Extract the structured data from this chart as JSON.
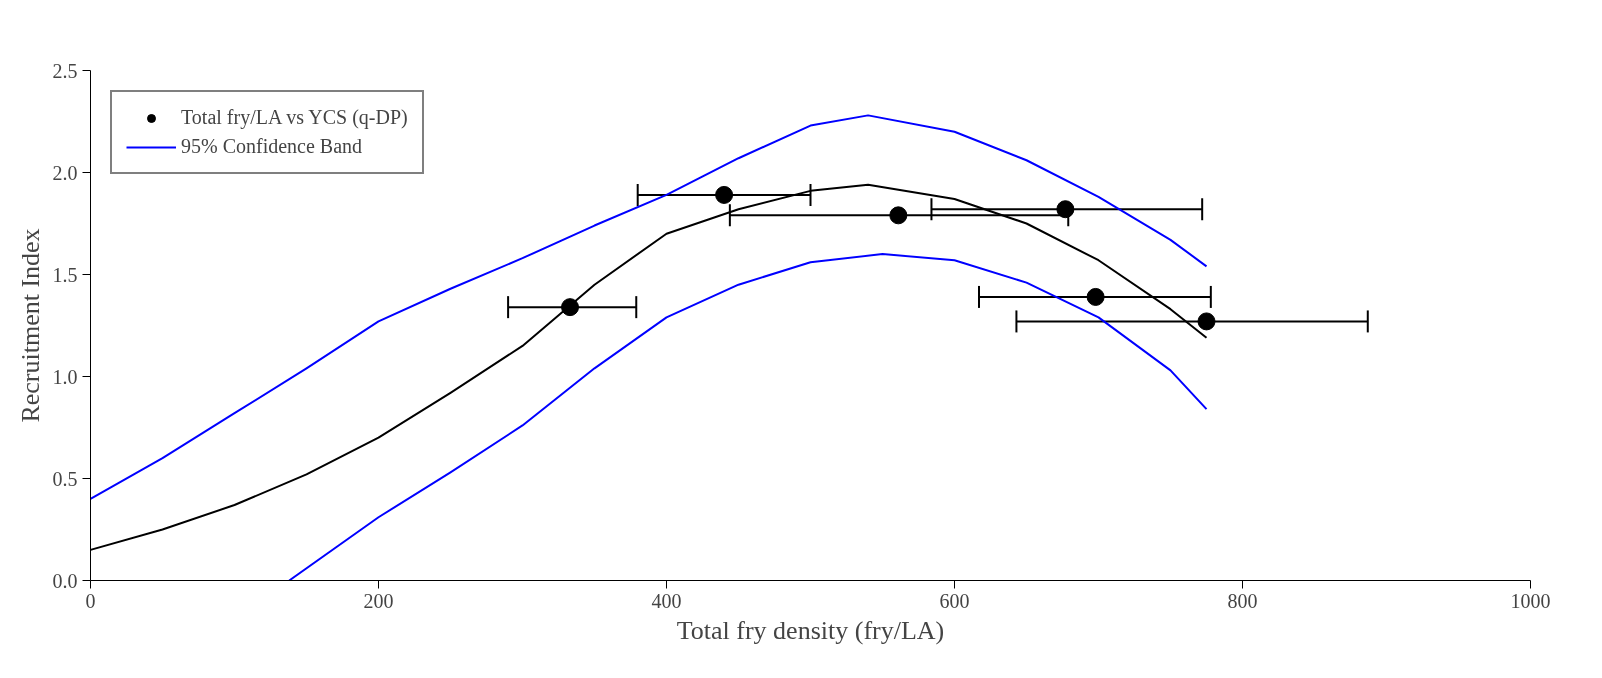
{
  "chart_data": {
    "type": "scatter",
    "xlabel": "Total fry density (fry/LA)",
    "ylabel": "Recruitment Index",
    "xlim": [
      0,
      1000
    ],
    "ylim": [
      0,
      2.5
    ],
    "xticks": [
      0,
      200,
      400,
      600,
      800,
      1000
    ],
    "yticks": [
      {
        "value": 0,
        "label": "0.0"
      },
      {
        "value": 0.5,
        "label": "0.5"
      },
      {
        "value": 1,
        "label": "1.0"
      },
      {
        "value": 1.5,
        "label": "1.5"
      },
      {
        "value": 2,
        "label": "2.0"
      },
      {
        "value": 2.5,
        "label": "2.5"
      }
    ],
    "grid": false,
    "legend": "top left",
    "series": [
      {
        "name": "Total fry/LA vs YCS (q-DP)",
        "marker": "circle",
        "color": "#000000",
        "x": [
          333,
          440,
          561,
          677,
          698,
          775
        ],
        "values": [
          1.34,
          1.89,
          1.79,
          1.82,
          1.39,
          1.27
        ],
        "xerrors": [
          [
            290,
            379
          ],
          [
            380,
            500
          ],
          [
            444,
            679
          ],
          [
            584,
            772
          ],
          [
            617,
            778
          ],
          [
            643,
            887
          ]
        ]
      },
      {
        "type": "line",
        "color": "#000000",
        "x": [
          0,
          50,
          100,
          150,
          200,
          250,
          300,
          350,
          400,
          450,
          500,
          540,
          600,
          650,
          700,
          750,
          775
        ],
        "values": [
          0.15,
          0.25,
          0.37,
          0.52,
          0.7,
          0.92,
          1.15,
          1.45,
          1.7,
          1.82,
          1.91,
          1.94,
          1.87,
          1.75,
          1.57,
          1.33,
          1.19
        ]
      },
      {
        "name": "95% Confidence Band",
        "type": "line",
        "color": "#0000ff",
        "x": [
          0,
          50,
          100,
          150,
          200,
          250,
          300,
          350,
          400,
          450,
          500,
          540,
          600,
          650,
          700,
          750,
          775
        ],
        "values": [
          0.4,
          0.6,
          0.82,
          1.04,
          1.27,
          1.43,
          1.58,
          1.74,
          1.89,
          2.07,
          2.23,
          2.28,
          2.2,
          2.06,
          1.88,
          1.67,
          1.54
        ]
      },
      {
        "type": "line",
        "color": "#0000ff",
        "x": [
          138,
          200,
          250,
          300,
          350,
          400,
          450,
          500,
          550,
          600,
          650,
          700,
          750,
          775
        ],
        "values": [
          0,
          0.31,
          0.53,
          0.76,
          1.04,
          1.29,
          1.45,
          1.56,
          1.6,
          1.57,
          1.46,
          1.29,
          1.03,
          0.84
        ]
      }
    ]
  }
}
